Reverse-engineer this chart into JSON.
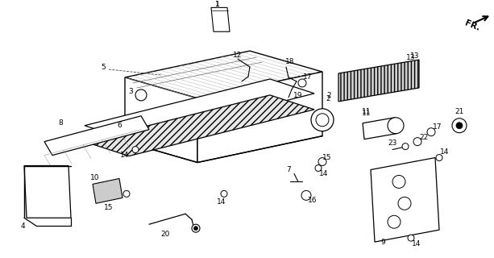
{
  "bg_color": "#ffffff",
  "line_color": "#000000",
  "figsize": [
    6.13,
    3.2
  ],
  "dpi": 100,
  "gray_fill": "#d0d0d0",
  "hatch_color": "#888888"
}
